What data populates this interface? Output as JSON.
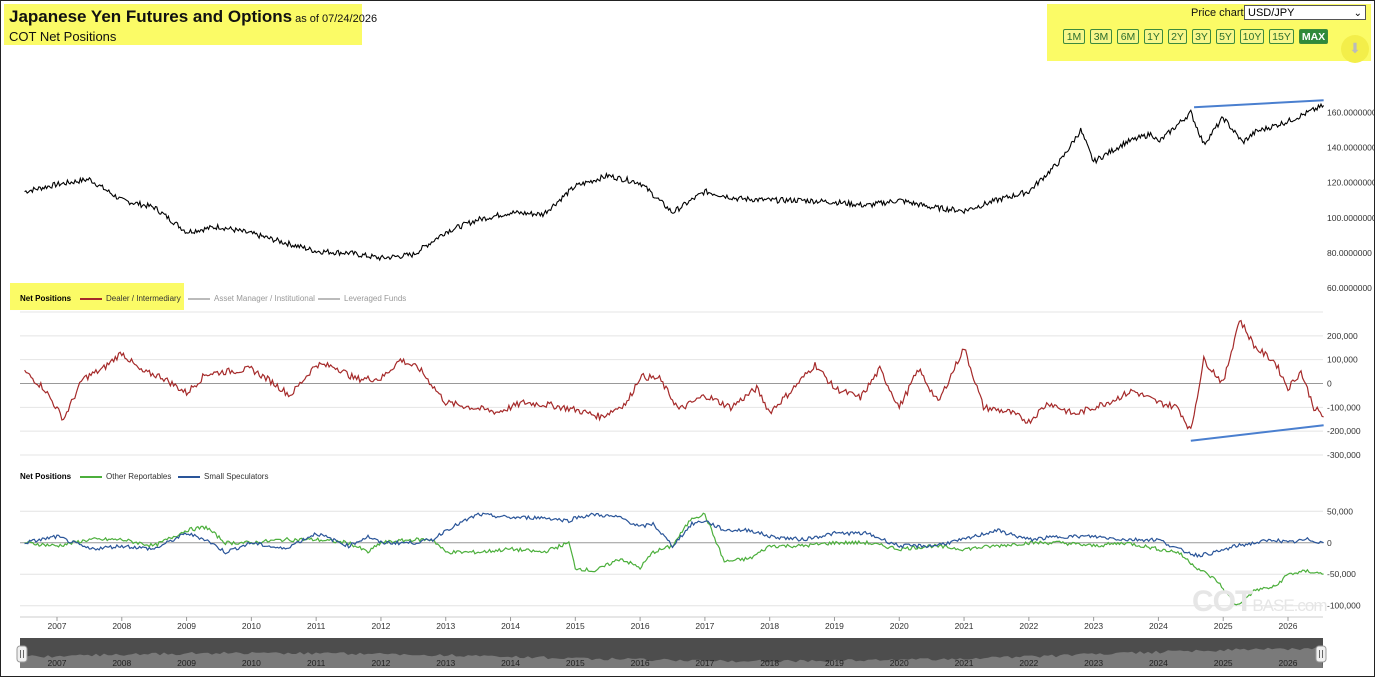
{
  "header": {
    "title": "Japanese Yen Futures and Options",
    "as_of": "as of 07/24/2026",
    "subtitle": "COT Net Positions"
  },
  "controls": {
    "price_chart_label": "Price chart:",
    "price_chart_value": "USD/JPY",
    "ranges": [
      "1M",
      "3M",
      "6M",
      "1Y",
      "2Y",
      "3Y",
      "5Y",
      "10Y",
      "15Y",
      "MAX"
    ],
    "active_range": "MAX",
    "download_icon": "download-icon"
  },
  "legend1": {
    "title": "Net Positions",
    "items": [
      {
        "label": "Dealer / Intermediary",
        "color": "#a52a2a",
        "active": true
      },
      {
        "label": "Asset Manager / Institutional",
        "color": "#bbbbbb",
        "active": false
      },
      {
        "label": "Leveraged Funds",
        "color": "#bbbbbb",
        "active": false
      }
    ]
  },
  "legend2": {
    "title": "Net Positions",
    "items": [
      {
        "label": "Other Reportables",
        "color": "#4caf3c"
      },
      {
        "label": "Small Speculators",
        "color": "#2a5599"
      }
    ]
  },
  "watermark": {
    "main": "COT",
    "sub": "BASE.com"
  },
  "navigator_years": [
    "2007",
    "2008",
    "2009",
    "2010",
    "2011",
    "2012",
    "2013",
    "2014",
    "2015",
    "2016",
    "2017",
    "2018",
    "2019",
    "2020",
    "2021",
    "2022",
    "2023",
    "2024",
    "2025",
    "2026"
  ],
  "chart_data": [
    {
      "type": "line",
      "name": "price",
      "x": [
        2006.5,
        2007.0,
        2007.5,
        2008.0,
        2008.5,
        2009.0,
        2009.5,
        2010.0,
        2010.5,
        2011.0,
        2011.5,
        2012.0,
        2012.5,
        2013.0,
        2013.5,
        2014.0,
        2014.5,
        2015.0,
        2015.5,
        2016.0,
        2016.5,
        2017.0,
        2017.5,
        2018.0,
        2018.5,
        2019.0,
        2019.5,
        2020.0,
        2020.5,
        2021.0,
        2021.5,
        2022.0,
        2022.5,
        2022.8,
        2023.0,
        2023.5,
        2023.9,
        2024.0,
        2024.5,
        2024.7,
        2025.0,
        2025.3,
        2025.5,
        2026.0,
        2026.55
      ],
      "series": [
        {
          "name": "USD/JPY",
          "color": "#000000",
          "values": [
            115,
            119,
            122,
            110,
            106,
            92,
            95,
            91,
            86,
            81,
            80,
            77,
            79,
            92,
            99,
            103,
            102,
            118,
            124,
            120,
            103,
            115,
            111,
            110,
            110,
            109,
            107,
            110,
            106,
            104,
            110,
            115,
            133,
            150,
            132,
            143,
            148,
            143,
            160,
            142,
            157,
            143,
            149,
            155,
            164
          ]
        }
      ],
      "y_ticks": [
        60,
        80,
        100,
        120,
        140,
        160
      ],
      "y_tick_labels": [
        "60.0000000",
        "80.0000000",
        "100.0000000",
        "120.0000000",
        "140.0000000",
        "160.0000000"
      ],
      "ylim": [
        60,
        170
      ],
      "trendline": {
        "x": [
          2024.55,
          2026.55
        ],
        "y": [
          163,
          167
        ],
        "color": "#4a7fcf"
      }
    },
    {
      "type": "line",
      "name": "dealer",
      "x": [
        2006.5,
        2006.8,
        2007.1,
        2007.4,
        2007.7,
        2008.0,
        2008.3,
        2008.6,
        2009.0,
        2009.3,
        2009.6,
        2010.0,
        2010.3,
        2010.6,
        2011.0,
        2011.3,
        2011.6,
        2012.0,
        2012.3,
        2012.6,
        2013.0,
        2013.4,
        2013.8,
        2014.2,
        2014.6,
        2015.0,
        2015.4,
        2015.8,
        2016.0,
        2016.3,
        2016.6,
        2017.0,
        2017.4,
        2017.8,
        2018.0,
        2018.3,
        2018.7,
        2019.0,
        2019.4,
        2019.7,
        2020.0,
        2020.3,
        2020.6,
        2021.0,
        2021.3,
        2021.7,
        2022.0,
        2022.3,
        2022.7,
        2023.0,
        2023.3,
        2023.6,
        2024.0,
        2024.3,
        2024.5,
        2024.7,
        2025.0,
        2025.25,
        2025.5,
        2025.8,
        2026.0,
        2026.2,
        2026.4,
        2026.55
      ],
      "series": [
        {
          "name": "Dealer / Intermediary",
          "color": "#a52a2a",
          "values": [
            50,
            -20,
            -150,
            20,
            60,
            130,
            50,
            30,
            -40,
            40,
            50,
            60,
            10,
            -50,
            80,
            70,
            20,
            20,
            100,
            60,
            -80,
            -100,
            -120,
            -80,
            -90,
            -110,
            -140,
            -80,
            30,
            20,
            -110,
            -50,
            -100,
            -20,
            -120,
            -40,
            80,
            -20,
            -60,
            60,
            -100,
            60,
            -80,
            150,
            -100,
            -120,
            -160,
            -80,
            -130,
            -100,
            -70,
            -30,
            -80,
            -100,
            -200,
            100,
            0,
            270,
            150,
            90,
            -20,
            50,
            -100,
            -140
          ]
        }
      ],
      "y_ticks": [
        -300000,
        -200000,
        -100000,
        0,
        100000,
        200000
      ],
      "y_tick_labels": [
        "-300,000",
        "-200,000",
        "-100,000",
        "0",
        "100,000",
        "200,000"
      ],
      "ylim": [
        -300000,
        300000
      ],
      "trendline": {
        "x": [
          2024.5,
          2026.55
        ],
        "y": [
          -240000,
          -175000
        ],
        "color": "#4a7fcf"
      }
    },
    {
      "type": "line",
      "name": "other-small",
      "x": [
        2006.5,
        2007.0,
        2007.5,
        2008.0,
        2008.5,
        2009.0,
        2009.3,
        2009.6,
        2010.0,
        2010.5,
        2011.0,
        2011.5,
        2011.8,
        2012.0,
        2012.5,
        2012.8,
        2013.0,
        2013.5,
        2014.0,
        2014.5,
        2014.9,
        2015.0,
        2015.3,
        2015.7,
        2016.0,
        2016.2,
        2016.5,
        2016.8,
        2017.0,
        2017.3,
        2017.7,
        2018.0,
        2018.5,
        2019.0,
        2019.5,
        2020.0,
        2020.5,
        2021.0,
        2021.5,
        2022.0,
        2022.5,
        2023.0,
        2023.5,
        2024.0,
        2024.3,
        2024.6,
        2024.9,
        2025.2,
        2025.5,
        2025.8,
        2026.0,
        2026.3,
        2026.55
      ],
      "series": [
        {
          "name": "Other Reportables",
          "color": "#4caf3c",
          "values": [
            0,
            -5,
            5,
            5,
            -5,
            20,
            25,
            0,
            0,
            5,
            5,
            0,
            -15,
            0,
            5,
            5,
            -15,
            -15,
            -10,
            -15,
            0,
            -40,
            -45,
            -25,
            -40,
            -15,
            -5,
            40,
            45,
            -30,
            -25,
            -5,
            -5,
            0,
            0,
            -10,
            -5,
            -10,
            -5,
            0,
            0,
            -5,
            0,
            -10,
            -15,
            -40,
            -60,
            -100,
            -75,
            -70,
            -50,
            -45,
            -50
          ]
        },
        {
          "name": "Small Speculators",
          "color": "#2a5599",
          "values": [
            0,
            10,
            -10,
            -5,
            -10,
            15,
            5,
            -15,
            0,
            -10,
            15,
            -5,
            10,
            0,
            0,
            5,
            20,
            45,
            40,
            40,
            35,
            40,
            45,
            40,
            25,
            30,
            -5,
            30,
            35,
            20,
            20,
            10,
            5,
            15,
            15,
            -5,
            -5,
            5,
            20,
            5,
            10,
            10,
            5,
            5,
            -10,
            -20,
            -15,
            -5,
            0,
            5,
            0,
            5,
            0
          ]
        }
      ],
      "y_ticks": [
        -100000,
        -50000,
        0,
        50000
      ],
      "y_tick_labels": [
        "-100,000",
        "-50,000",
        "0",
        "50,000"
      ],
      "ylim": [
        -110000,
        60000
      ]
    }
  ]
}
